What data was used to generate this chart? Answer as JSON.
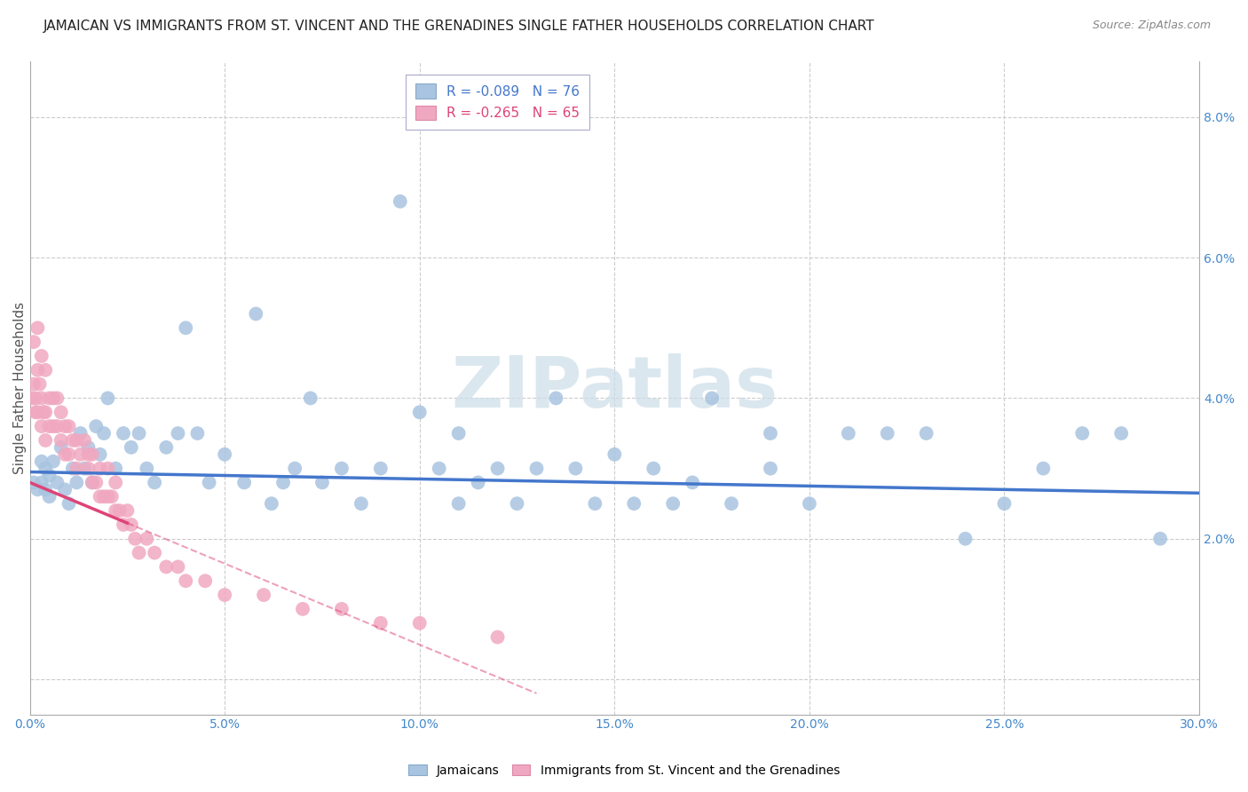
{
  "title": "JAMAICAN VS IMMIGRANTS FROM ST. VINCENT AND THE GRENADINES SINGLE FATHER HOUSEHOLDS CORRELATION CHART",
  "source": "Source: ZipAtlas.com",
  "ylabel": "Single Father Households",
  "xlim": [
    0.0,
    0.3
  ],
  "ylim": [
    -0.005,
    0.088
  ],
  "xticks": [
    0.0,
    0.05,
    0.1,
    0.15,
    0.2,
    0.25,
    0.3
  ],
  "xtick_labels": [
    "0.0%",
    "5.0%",
    "10.0%",
    "15.0%",
    "20.0%",
    "25.0%",
    "30.0%"
  ],
  "ytick_labels_right": [
    "2.0%",
    "4.0%",
    "6.0%",
    "8.0%"
  ],
  "yticks_right": [
    0.02,
    0.04,
    0.06,
    0.08
  ],
  "legend_r_blue": "R = -0.089",
  "legend_n_blue": "N = 76",
  "legend_r_pink": "R = -0.265",
  "legend_n_pink": "N = 65",
  "blue_color": "#a8c4e0",
  "pink_color": "#f0a8c0",
  "trend_blue": "#4477cc",
  "trend_pink": "#dd4477",
  "watermark": "ZIPatlas",
  "watermark_color": "#ccdde8",
  "background_color": "#ffffff",
  "grid_color": "#cccccc",
  "blue_scatter_x": [
    0.001,
    0.002,
    0.003,
    0.003,
    0.004,
    0.004,
    0.005,
    0.005,
    0.006,
    0.007,
    0.008,
    0.009,
    0.01,
    0.011,
    0.012,
    0.013,
    0.014,
    0.015,
    0.016,
    0.017,
    0.018,
    0.019,
    0.02,
    0.022,
    0.024,
    0.026,
    0.028,
    0.03,
    0.032,
    0.035,
    0.038,
    0.04,
    0.043,
    0.046,
    0.05,
    0.055,
    0.058,
    0.062,
    0.065,
    0.068,
    0.072,
    0.075,
    0.08,
    0.085,
    0.09,
    0.095,
    0.1,
    0.105,
    0.11,
    0.115,
    0.12,
    0.125,
    0.13,
    0.135,
    0.14,
    0.145,
    0.15,
    0.155,
    0.16,
    0.165,
    0.17,
    0.175,
    0.18,
    0.19,
    0.2,
    0.21,
    0.22,
    0.23,
    0.24,
    0.25,
    0.26,
    0.27,
    0.28,
    0.29,
    0.11,
    0.19
  ],
  "blue_scatter_y": [
    0.028,
    0.027,
    0.031,
    0.028,
    0.03,
    0.027,
    0.029,
    0.026,
    0.031,
    0.028,
    0.033,
    0.027,
    0.025,
    0.03,
    0.028,
    0.035,
    0.03,
    0.033,
    0.028,
    0.036,
    0.032,
    0.035,
    0.04,
    0.03,
    0.035,
    0.033,
    0.035,
    0.03,
    0.028,
    0.033,
    0.035,
    0.05,
    0.035,
    0.028,
    0.032,
    0.028,
    0.052,
    0.025,
    0.028,
    0.03,
    0.04,
    0.028,
    0.03,
    0.025,
    0.03,
    0.068,
    0.038,
    0.03,
    0.035,
    0.028,
    0.03,
    0.025,
    0.03,
    0.04,
    0.03,
    0.025,
    0.032,
    0.025,
    0.03,
    0.025,
    0.028,
    0.04,
    0.025,
    0.03,
    0.025,
    0.035,
    0.035,
    0.035,
    0.02,
    0.025,
    0.03,
    0.035,
    0.035,
    0.02,
    0.025,
    0.035
  ],
  "pink_scatter_x": [
    0.0005,
    0.001,
    0.001,
    0.0015,
    0.0015,
    0.002,
    0.002,
    0.002,
    0.0025,
    0.003,
    0.003,
    0.003,
    0.0035,
    0.004,
    0.004,
    0.004,
    0.005,
    0.005,
    0.006,
    0.006,
    0.007,
    0.007,
    0.008,
    0.008,
    0.009,
    0.009,
    0.01,
    0.01,
    0.011,
    0.012,
    0.012,
    0.013,
    0.014,
    0.015,
    0.015,
    0.016,
    0.016,
    0.017,
    0.018,
    0.018,
    0.019,
    0.02,
    0.02,
    0.021,
    0.022,
    0.022,
    0.023,
    0.024,
    0.025,
    0.026,
    0.027,
    0.028,
    0.03,
    0.032,
    0.035,
    0.038,
    0.04,
    0.045,
    0.05,
    0.06,
    0.07,
    0.08,
    0.09,
    0.1,
    0.12
  ],
  "pink_scatter_y": [
    0.04,
    0.048,
    0.042,
    0.04,
    0.038,
    0.05,
    0.044,
    0.038,
    0.042,
    0.046,
    0.04,
    0.036,
    0.038,
    0.044,
    0.038,
    0.034,
    0.04,
    0.036,
    0.04,
    0.036,
    0.04,
    0.036,
    0.038,
    0.034,
    0.036,
    0.032,
    0.036,
    0.032,
    0.034,
    0.034,
    0.03,
    0.032,
    0.034,
    0.032,
    0.03,
    0.028,
    0.032,
    0.028,
    0.03,
    0.026,
    0.026,
    0.03,
    0.026,
    0.026,
    0.024,
    0.028,
    0.024,
    0.022,
    0.024,
    0.022,
    0.02,
    0.018,
    0.02,
    0.018,
    0.016,
    0.016,
    0.014,
    0.014,
    0.012,
    0.012,
    0.01,
    0.01,
    0.008,
    0.008,
    0.006
  ],
  "blue_trend_x0": 0.0,
  "blue_trend_y0": 0.0295,
  "blue_trend_x1": 0.3,
  "blue_trend_y1": 0.0265,
  "pink_trend_x0": 0.0,
  "pink_trend_y0": 0.028,
  "pink_trend_x1": 0.13,
  "pink_trend_y1": -0.002
}
